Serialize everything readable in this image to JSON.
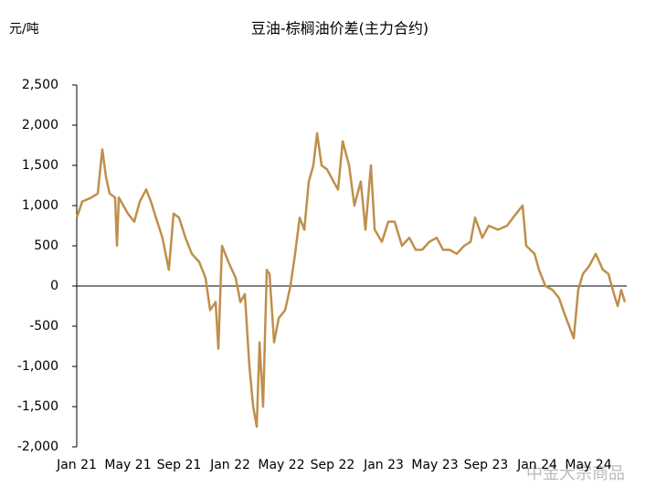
{
  "chart_data": {
    "type": "line",
    "title": "豆油-棕榈油价差(主力合约)",
    "y_label": "元/吨",
    "watermark": "中金大宗商品",
    "x": [
      0,
      0.43,
      1.14,
      1.64,
      2.0,
      2.29,
      2.57,
      3.0,
      3.14,
      3.29,
      4.0,
      4.5,
      4.93,
      5.43,
      5.8,
      6.29,
      6.7,
      7.2,
      7.57,
      8.0,
      8.5,
      9.0,
      9.57,
      10.07,
      10.43,
      10.86,
      11.07,
      11.36,
      11.86,
      12.43,
      12.79,
      13.14,
      13.5,
      13.79,
      14.07,
      14.29,
      14.57,
      14.86,
      15.07,
      15.43,
      15.79,
      16.29,
      16.71,
      17.07,
      17.43,
      17.79,
      18.14,
      18.5,
      18.79,
      19.14,
      19.57,
      20.07,
      20.43,
      20.79,
      21.29,
      21.71,
      22.21,
      22.57,
      23.0,
      23.29,
      23.86,
      24.36,
      24.86,
      25.43,
      26.0,
      26.5,
      27.0,
      27.57,
      28.14,
      28.64,
      29.14,
      29.71,
      30.29,
      30.79,
      31.14,
      31.71,
      32.21,
      32.93,
      33.64,
      34.36,
      34.86,
      35.14,
      35.79,
      36.14,
      36.64,
      37.21,
      37.71,
      38.14,
      38.5,
      38.86,
      39.21,
      39.57,
      40.07,
      40.57,
      41.14,
      41.57,
      42.0,
      42.29,
      42.57,
      42.86
    ],
    "series": [
      {
        "color": "#bf8f4c",
        "values": [
          850,
          1050,
          1100,
          1150,
          1700,
          1350,
          1150,
          1100,
          500,
          1100,
          900,
          800,
          1050,
          1200,
          1050,
          800,
          600,
          200,
          900,
          850,
          600,
          400,
          300,
          100,
          -300,
          -200,
          -780,
          500,
          300,
          100,
          -200,
          -100,
          -1000,
          -1500,
          -1750,
          -700,
          -1500,
          200,
          150,
          -700,
          -400,
          -300,
          0,
          400,
          850,
          700,
          1300,
          1500,
          1900,
          1500,
          1450,
          1300,
          1200,
          1800,
          1500,
          1000,
          1300,
          700,
          1500,
          700,
          550,
          800,
          800,
          500,
          600,
          450,
          450,
          550,
          600,
          450,
          450,
          400,
          500,
          550,
          850,
          600,
          750,
          700,
          750,
          900,
          1000,
          500,
          400,
          200,
          0,
          -50,
          -150,
          -350,
          -500,
          -650,
          -50,
          150,
          250,
          400,
          200,
          150,
          -100,
          -250,
          -50,
          -200
        ]
      }
    ],
    "xlim": [
      0,
      43
    ],
    "xticks": [
      {
        "value": 0,
        "label": "Jan 21"
      },
      {
        "value": 4,
        "label": "May 21"
      },
      {
        "value": 8,
        "label": "Sep 21"
      },
      {
        "value": 12,
        "label": "Jan 22"
      },
      {
        "value": 16,
        "label": "May 22"
      },
      {
        "value": 20,
        "label": "Sep 22"
      },
      {
        "value": 24,
        "label": "Jan 23"
      },
      {
        "value": 28,
        "label": "May 23"
      },
      {
        "value": 32,
        "label": "Sep 23"
      },
      {
        "value": 36,
        "label": "Jan 24"
      },
      {
        "value": 40,
        "label": "May 24"
      }
    ],
    "ylim": [
      -2000,
      2500
    ],
    "yticks": [
      {
        "value": 2500,
        "label": "2,500"
      },
      {
        "value": 2000,
        "label": "2,000"
      },
      {
        "value": 1500,
        "label": "1,500"
      },
      {
        "value": 1000,
        "label": "1,000"
      },
      500,
      0,
      -500,
      {
        "value": -1000,
        "label": "-1,000"
      },
      {
        "value": -1500,
        "label": "-1,500"
      },
      {
        "value": -2000,
        "label": "-2,000"
      }
    ]
  }
}
